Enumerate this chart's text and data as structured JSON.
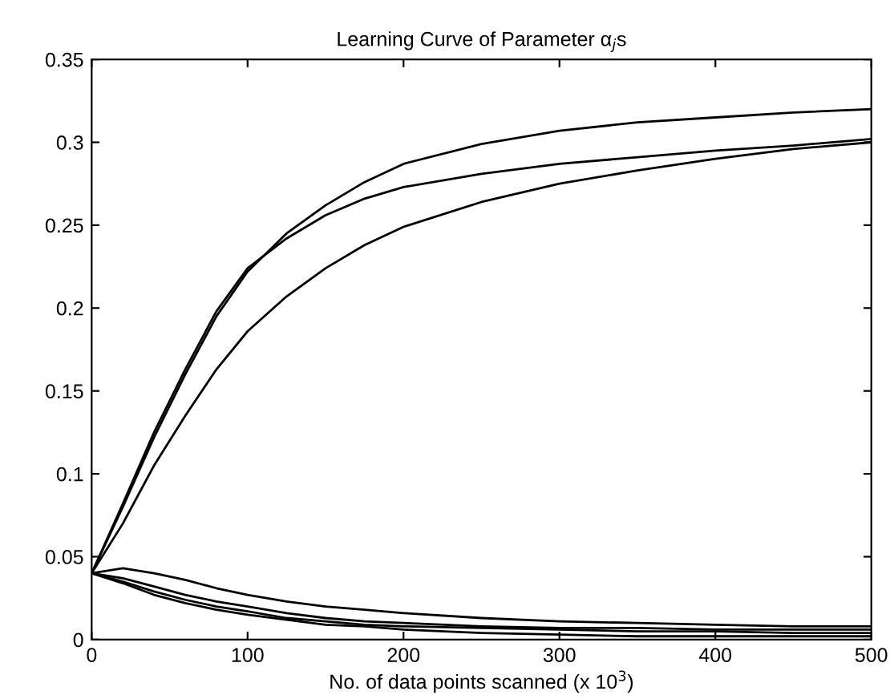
{
  "chart_data": {
    "type": "line",
    "title": "Learning Curve of Parameter α$_{j}$s",
    "xlabel": "No. of data points scanned (x 10$^{3}$)",
    "x": [
      0,
      20,
      40,
      60,
      80,
      100,
      125,
      150,
      175,
      200,
      250,
      300,
      350,
      400,
      450,
      500
    ],
    "series": [
      {
        "color": "#000000",
        "values": [
          0.04,
          0.08,
          0.122,
          0.16,
          0.195,
          0.222,
          0.245,
          0.262,
          0.276,
          0.287,
          0.299,
          0.307,
          0.312,
          0.315,
          0.318,
          0.32
        ]
      },
      {
        "color": "#000000",
        "values": [
          0.04,
          0.082,
          0.125,
          0.163,
          0.198,
          0.224,
          0.242,
          0.256,
          0.266,
          0.273,
          0.281,
          0.287,
          0.291,
          0.295,
          0.298,
          0.302
        ]
      },
      {
        "color": "#000000",
        "values": [
          0.04,
          0.07,
          0.105,
          0.135,
          0.163,
          0.186,
          0.207,
          0.224,
          0.238,
          0.249,
          0.264,
          0.275,
          0.283,
          0.29,
          0.296,
          0.3
        ]
      },
      {
        "color": "#000000",
        "values": [
          0.04,
          0.043,
          0.04,
          0.036,
          0.031,
          0.027,
          0.023,
          0.02,
          0.018,
          0.016,
          0.013,
          0.011,
          0.01,
          0.009,
          0.008,
          0.008
        ]
      },
      {
        "color": "#000000",
        "values": [
          0.04,
          0.037,
          0.032,
          0.027,
          0.023,
          0.02,
          0.016,
          0.013,
          0.011,
          0.01,
          0.008,
          0.007,
          0.007,
          0.006,
          0.006,
          0.006
        ]
      },
      {
        "color": "#000000",
        "values": [
          0.04,
          0.035,
          0.029,
          0.024,
          0.02,
          0.017,
          0.013,
          0.011,
          0.009,
          0.008,
          0.007,
          0.006,
          0.005,
          0.005,
          0.004,
          0.004
        ]
      },
      {
        "color": "#000000",
        "values": [
          0.04,
          0.034,
          0.027,
          0.022,
          0.018,
          0.015,
          0.012,
          0.009,
          0.008,
          0.006,
          0.004,
          0.003,
          0.002,
          0.002,
          0.002,
          0.002
        ]
      }
    ],
    "xlim": [
      0,
      500
    ],
    "xticks": [
      0,
      100,
      200,
      300,
      400,
      500
    ],
    "ylim": [
      0,
      0.35
    ],
    "yticks": [
      0,
      0.05,
      0.1,
      0.15,
      0.2,
      0.25,
      0.3,
      0.35
    ],
    "grid": false,
    "legend": false,
    "marker": "none",
    "line_style": "solid"
  }
}
